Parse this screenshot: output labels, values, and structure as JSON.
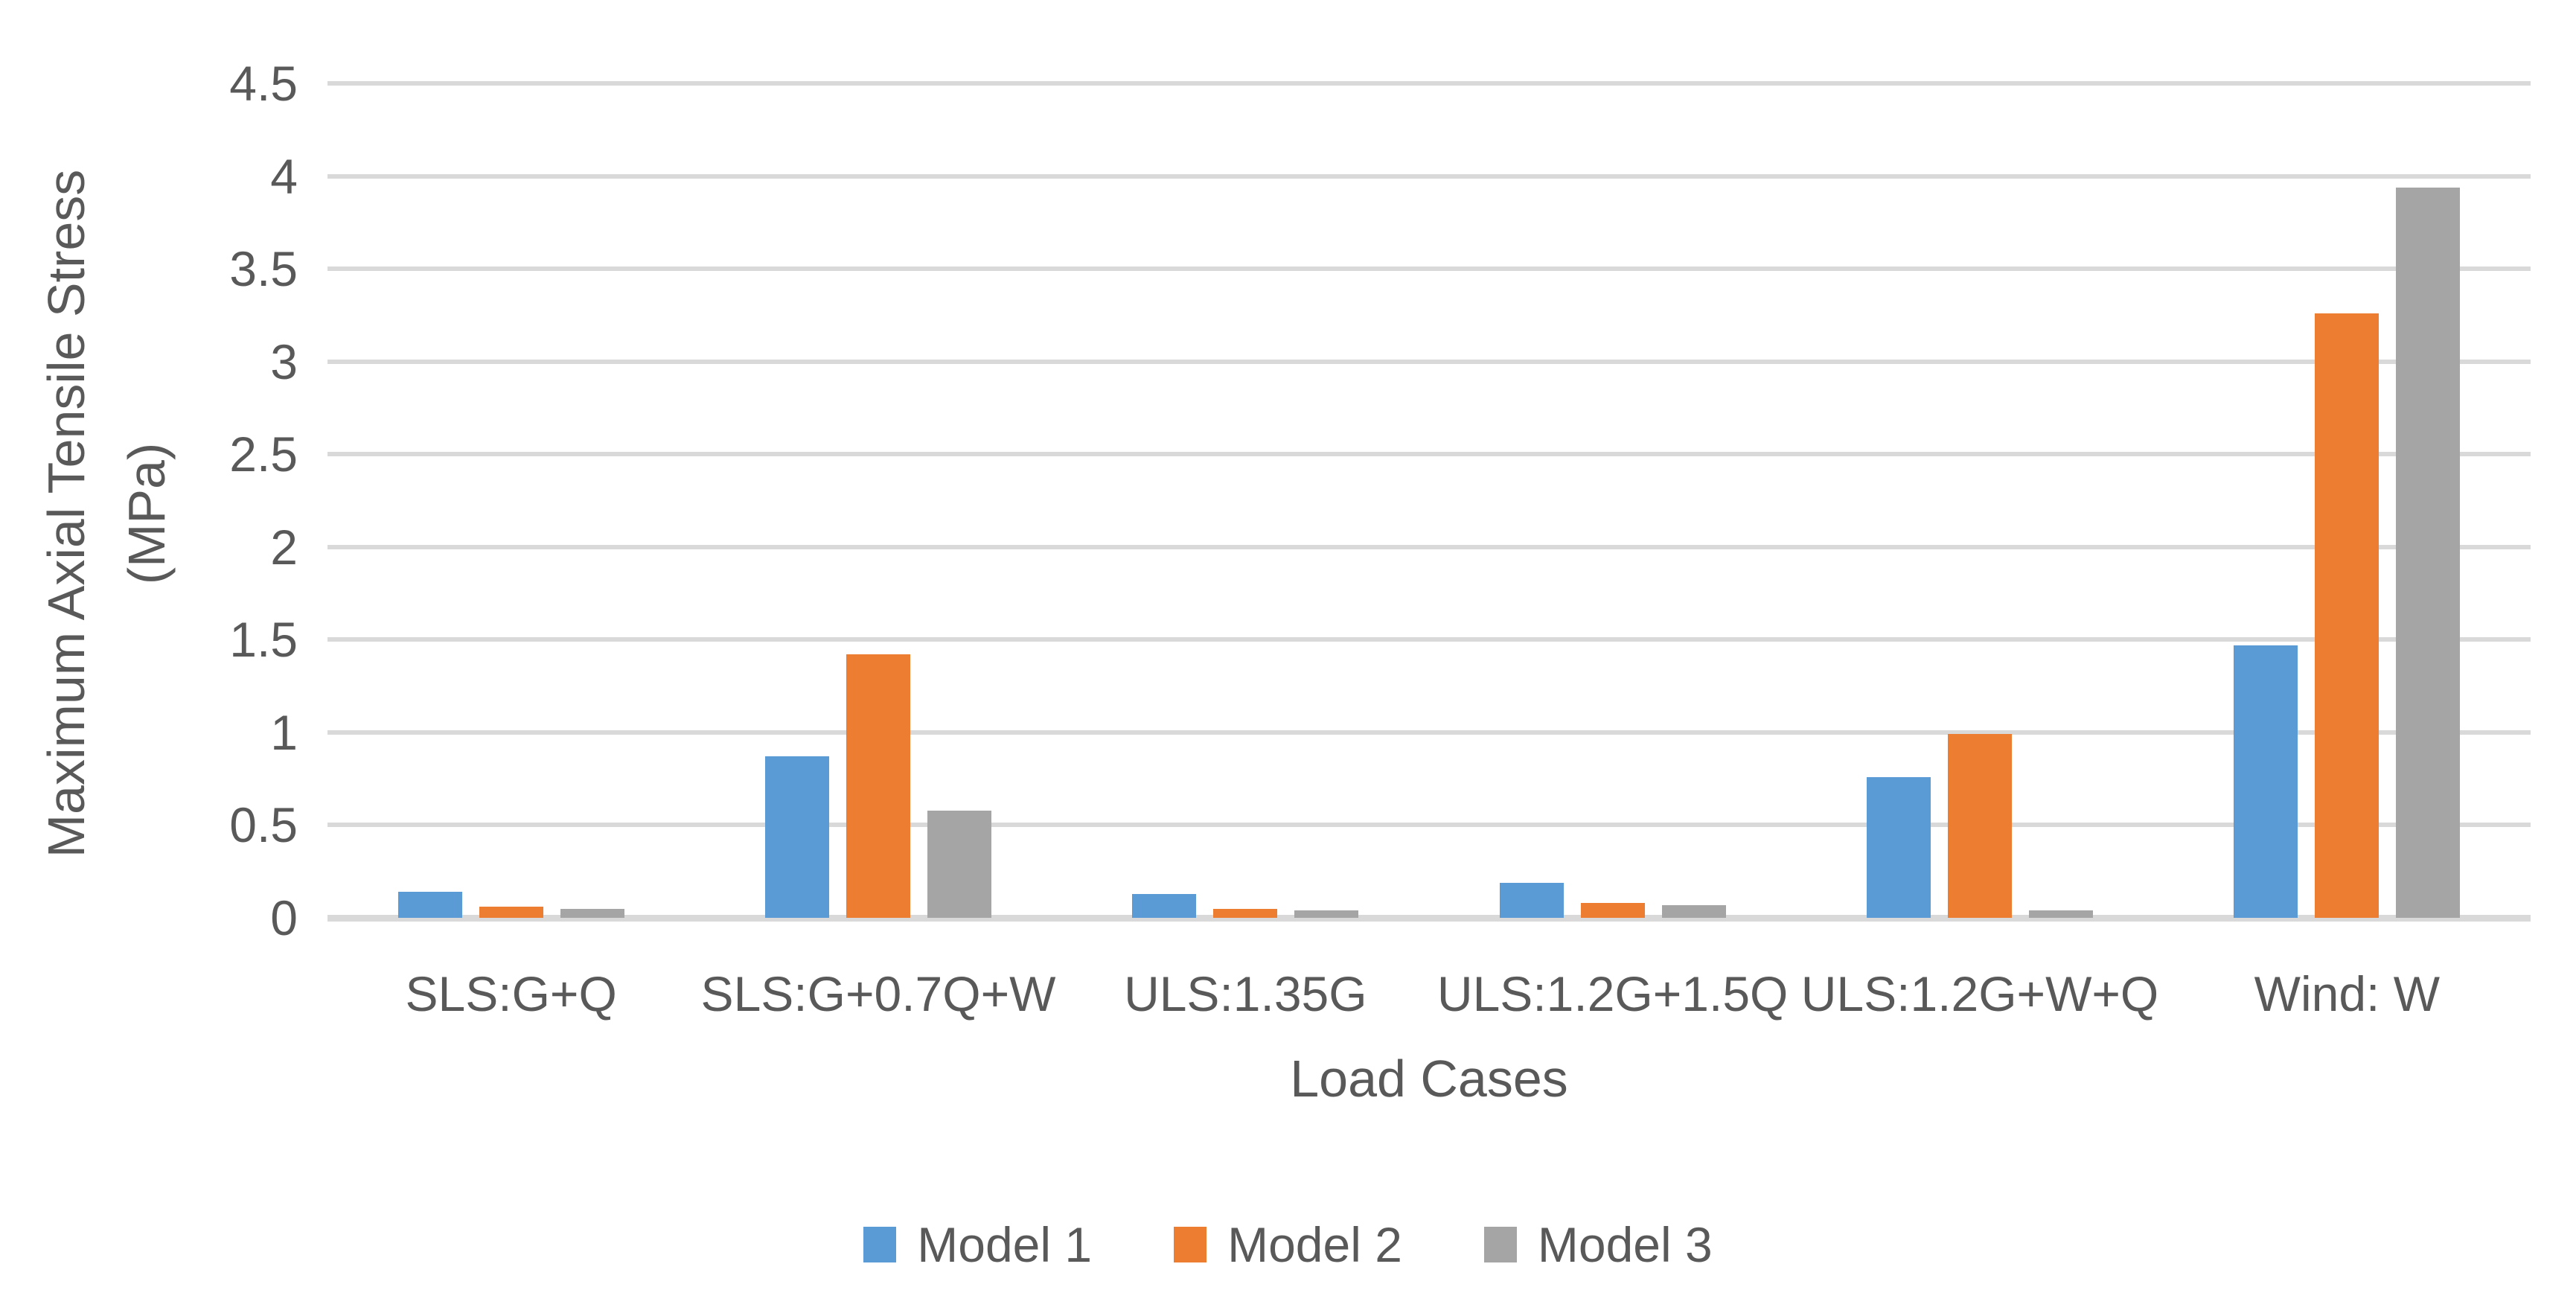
{
  "chart_data": {
    "type": "bar",
    "title": "",
    "xlabel": "Load Cases",
    "ylabel": "Maximum Axial Tensile Stress (MPa)",
    "ylabel_lines": [
      "Maximum Axial Tensile Stress",
      "(MPa)"
    ],
    "categories": [
      "SLS:G+Q",
      "SLS:G+0.7Q+W",
      "ULS:1.35G",
      "ULS:1.2G+1.5Q",
      "ULS:1.2G+W+Q",
      "Wind: W"
    ],
    "series": [
      {
        "name": "Model 1",
        "color": "#5B9BD5",
        "values": [
          0.14,
          0.87,
          0.13,
          0.19,
          0.76,
          1.47
        ]
      },
      {
        "name": "Model 2",
        "color": "#ED7D31",
        "values": [
          0.06,
          1.42,
          0.05,
          0.08,
          0.99,
          3.26
        ]
      },
      {
        "name": "Model 3",
        "color": "#A5A5A5",
        "values": [
          0.05,
          0.58,
          0.04,
          0.07,
          0.04,
          3.94
        ]
      }
    ],
    "y_ticks": [
      "0",
      "0.5",
      "1",
      "1.5",
      "2",
      "2.5",
      "3",
      "3.5",
      "4",
      "4.5"
    ],
    "ylim": [
      0,
      4.5
    ],
    "grid": "horizontal-only",
    "legend_position": "bottom",
    "colors": {
      "gridline": "#D9D9D9",
      "axis_line": "#D9D9D9",
      "text": "#595959",
      "background": "#FFFFFF"
    }
  }
}
